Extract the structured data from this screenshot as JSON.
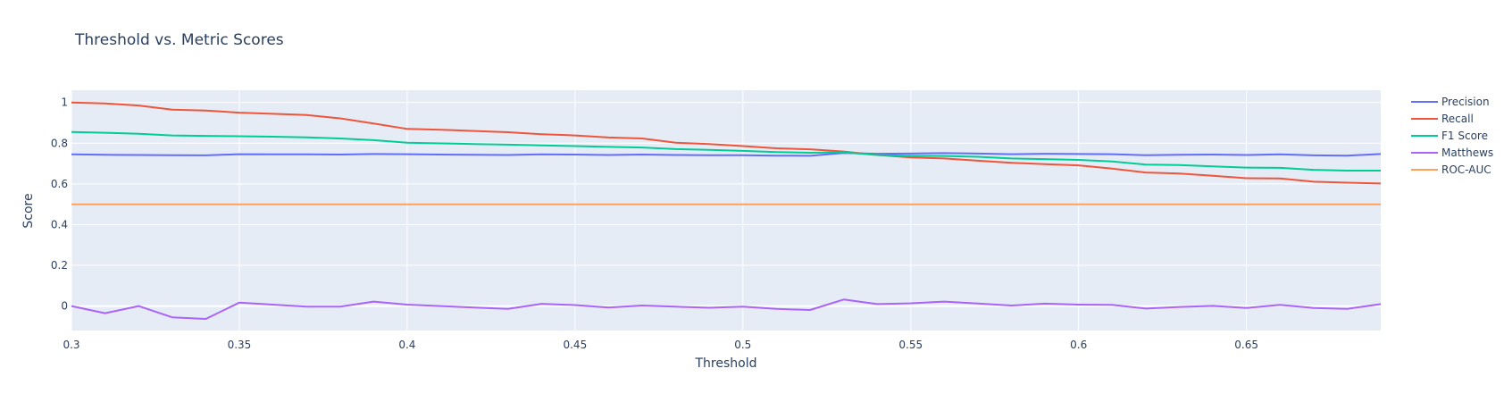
{
  "chart_data": {
    "type": "line",
    "title": "Threshold vs. Metric Scores",
    "xlabel": "Threshold",
    "ylabel": "Score",
    "xlim": [
      0.3,
      0.69
    ],
    "ylim": [
      -0.12,
      1.06
    ],
    "xticks": [
      0.3,
      0.35,
      0.4,
      0.45,
      0.5,
      0.55,
      0.6,
      0.65
    ],
    "xtick_labels": [
      "0.3",
      "0.35",
      "0.4",
      "0.45",
      "0.5",
      "0.55",
      "0.6",
      "0.65"
    ],
    "yticks": [
      0,
      0.2,
      0.4,
      0.6,
      0.8,
      1
    ],
    "ytick_labels": [
      "0",
      "0.2",
      "0.4",
      "0.6",
      "0.8",
      "1"
    ],
    "grid": true,
    "legend_position": "top-right",
    "x": [
      0.3,
      0.31,
      0.32,
      0.33,
      0.34,
      0.35,
      0.36,
      0.37,
      0.38,
      0.39,
      0.4,
      0.41,
      0.42,
      0.43,
      0.44,
      0.45,
      0.46,
      0.47,
      0.48,
      0.49,
      0.5,
      0.51,
      0.52,
      0.53,
      0.54,
      0.55,
      0.56,
      0.57,
      0.58,
      0.59,
      0.6,
      0.61,
      0.62,
      0.63,
      0.64,
      0.65,
      0.66,
      0.67,
      0.68,
      0.69
    ],
    "series": [
      {
        "name": "Precision",
        "color": "#636efa",
        "values": [
          0.745,
          0.743,
          0.742,
          0.741,
          0.74,
          0.746,
          0.745,
          0.745,
          0.744,
          0.747,
          0.746,
          0.744,
          0.743,
          0.742,
          0.745,
          0.744,
          0.742,
          0.744,
          0.742,
          0.741,
          0.741,
          0.739,
          0.738,
          0.752,
          0.748,
          0.749,
          0.751,
          0.749,
          0.746,
          0.748,
          0.747,
          0.746,
          0.741,
          0.743,
          0.744,
          0.742,
          0.745,
          0.74,
          0.739,
          0.747
        ]
      },
      {
        "name": "Recall",
        "color": "#ef553b",
        "values": [
          1.0,
          0.995,
          0.985,
          0.965,
          0.96,
          0.95,
          0.944,
          0.938,
          0.922,
          0.897,
          0.87,
          0.866,
          0.86,
          0.854,
          0.844,
          0.838,
          0.828,
          0.823,
          0.802,
          0.796,
          0.786,
          0.775,
          0.77,
          0.759,
          0.742,
          0.73,
          0.725,
          0.714,
          0.704,
          0.697,
          0.691,
          0.675,
          0.656,
          0.651,
          0.64,
          0.628,
          0.627,
          0.611,
          0.606,
          0.602
        ]
      },
      {
        "name": "F1 Score",
        "color": "#00cc96",
        "values": [
          0.855,
          0.851,
          0.846,
          0.838,
          0.836,
          0.834,
          0.832,
          0.829,
          0.823,
          0.815,
          0.802,
          0.799,
          0.796,
          0.793,
          0.789,
          0.786,
          0.782,
          0.779,
          0.771,
          0.767,
          0.762,
          0.756,
          0.753,
          0.755,
          0.742,
          0.738,
          0.737,
          0.733,
          0.725,
          0.722,
          0.718,
          0.71,
          0.695,
          0.693,
          0.686,
          0.68,
          0.679,
          0.669,
          0.665,
          0.665
        ]
      },
      {
        "name": "Matthews",
        "color": "#ab63fa",
        "values": [
          0.0,
          -0.035,
          0.0,
          -0.055,
          -0.063,
          0.017,
          0.007,
          -0.003,
          -0.003,
          0.022,
          0.007,
          0.0,
          -0.007,
          -0.014,
          0.011,
          0.005,
          -0.007,
          0.003,
          -0.003,
          -0.008,
          -0.003,
          -0.014,
          -0.019,
          0.032,
          0.01,
          0.014,
          0.022,
          0.013,
          0.003,
          0.012,
          0.007,
          0.006,
          -0.012,
          -0.004,
          0.001,
          -0.009,
          0.006,
          -0.009,
          -0.014,
          0.01
        ]
      },
      {
        "name": "ROC-AUC",
        "color": "#ffa15a",
        "values": [
          0.5,
          0.5,
          0.5,
          0.5,
          0.5,
          0.5,
          0.5,
          0.5,
          0.5,
          0.5,
          0.5,
          0.5,
          0.5,
          0.5,
          0.5,
          0.5,
          0.5,
          0.5,
          0.5,
          0.5,
          0.5,
          0.5,
          0.5,
          0.5,
          0.5,
          0.5,
          0.5,
          0.5,
          0.5,
          0.5,
          0.5,
          0.5,
          0.5,
          0.5,
          0.5,
          0.5,
          0.5,
          0.5,
          0.5,
          0.5
        ]
      }
    ]
  }
}
